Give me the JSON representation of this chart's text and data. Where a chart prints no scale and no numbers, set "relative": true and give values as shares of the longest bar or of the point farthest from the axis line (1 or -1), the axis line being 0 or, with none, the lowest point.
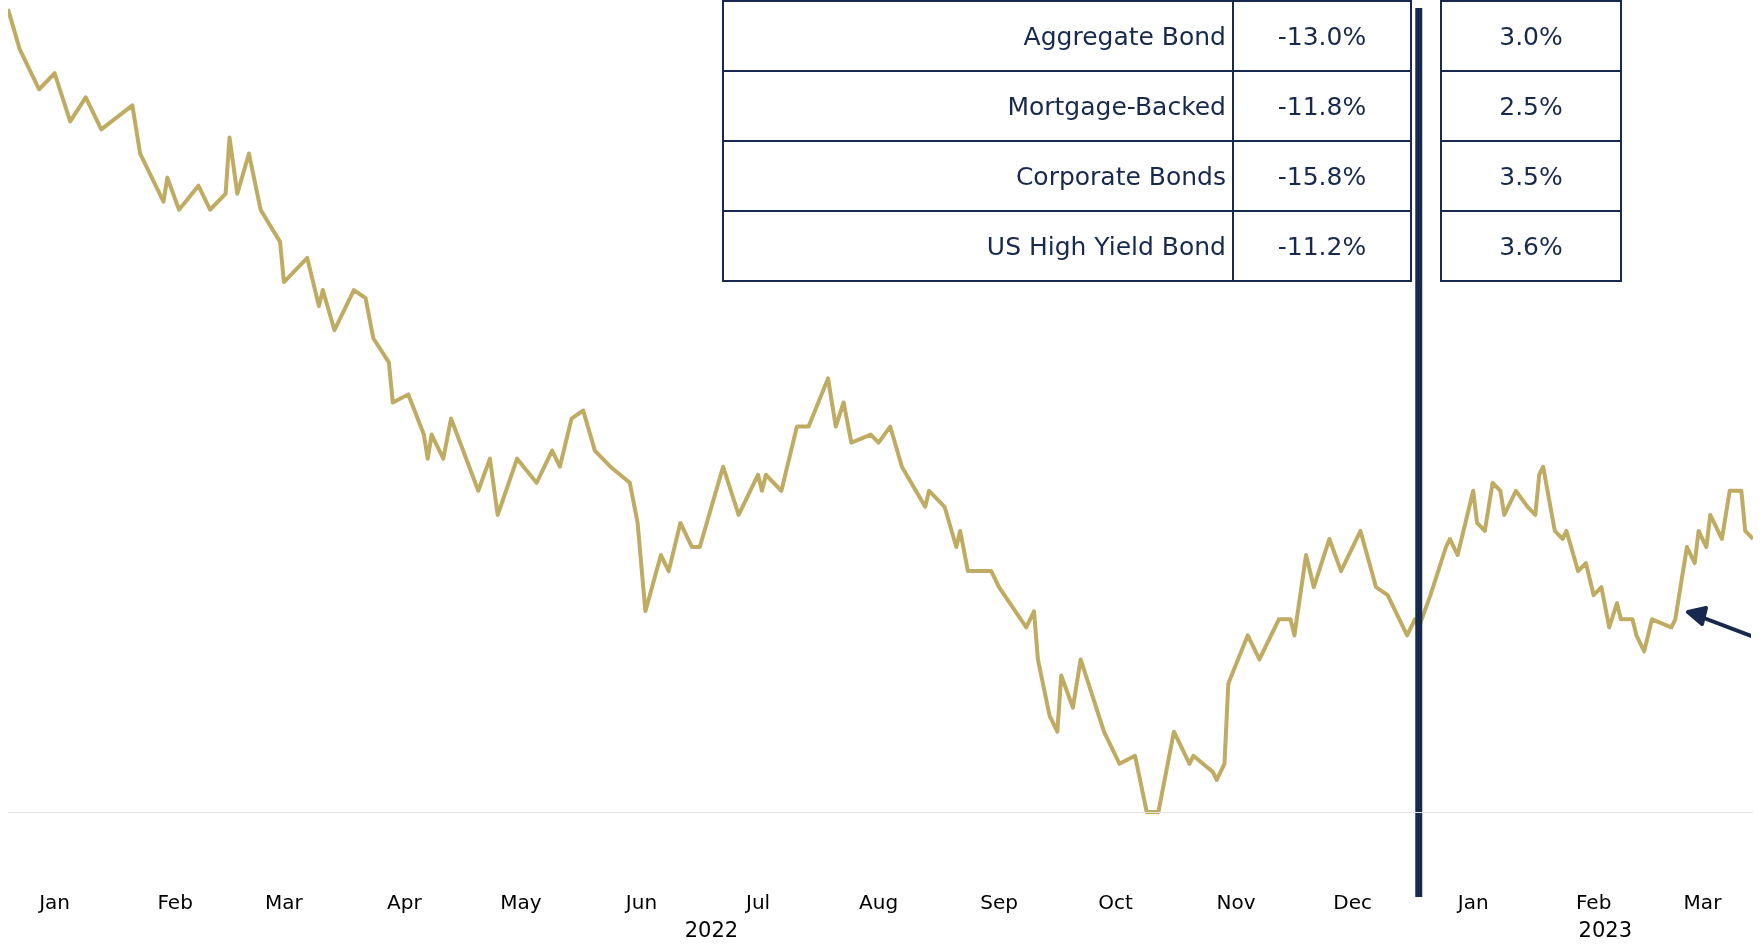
{
  "chart_data": {
    "type": "line",
    "relative": true,
    "grid": false,
    "legend": false,
    "tick_labels": "x",
    "x": [
      "2022-01-03",
      "2022-01-06",
      "2022-01-11",
      "2022-01-15",
      "2022-01-19",
      "2022-01-23",
      "2022-01-27",
      "2022-02-04",
      "2022-02-06",
      "2022-02-12",
      "2022-02-13",
      "2022-02-16",
      "2022-02-21",
      "2022-02-24",
      "2022-02-28",
      "2022-03-01",
      "2022-03-03",
      "2022-03-06",
      "2022-03-09",
      "2022-03-14",
      "2022-03-15",
      "2022-03-21",
      "2022-03-24",
      "2022-03-25",
      "2022-03-28",
      "2022-04-02",
      "2022-04-05",
      "2022-04-07",
      "2022-04-11",
      "2022-04-12",
      "2022-04-16",
      "2022-04-20",
      "2022-04-21",
      "2022-04-22",
      "2022-04-25",
      "2022-04-27",
      "2022-05-04",
      "2022-05-07",
      "2022-05-09",
      "2022-05-14",
      "2022-05-19",
      "2022-05-23",
      "2022-05-25",
      "2022-05-28",
      "2022-05-31",
      "2022-06-03",
      "2022-06-07",
      "2022-06-12",
      "2022-06-14",
      "2022-06-16",
      "2022-06-20",
      "2022-06-22",
      "2022-06-25",
      "2022-06-28",
      "2022-06-30",
      "2022-07-06",
      "2022-07-10",
      "2022-07-15",
      "2022-07-16",
      "2022-07-17",
      "2022-07-21",
      "2022-07-25",
      "2022-07-28",
      "2022-08-02",
      "2022-08-04",
      "2022-08-06",
      "2022-08-08",
      "2022-08-13",
      "2022-08-15",
      "2022-08-18",
      "2022-08-21",
      "2022-08-27",
      "2022-08-28",
      "2022-09-01",
      "2022-09-04",
      "2022-09-05",
      "2022-09-07",
      "2022-09-13",
      "2022-09-15",
      "2022-09-22",
      "2022-09-24",
      "2022-09-25",
      "2022-09-28",
      "2022-09-30",
      "2022-10-01",
      "2022-10-04",
      "2022-10-06",
      "2022-10-12",
      "2022-10-16",
      "2022-10-20",
      "2022-10-23",
      "2022-10-26",
      "2022-10-30",
      "2022-11-03",
      "2022-11-04",
      "2022-11-09",
      "2022-11-10",
      "2022-11-12",
      "2022-11-13",
      "2022-11-18",
      "2022-11-21",
      "2022-11-26",
      "2022-11-29",
      "2022-11-30",
      "2022-12-03",
      "2022-12-05",
      "2022-12-09",
      "2022-12-12",
      "2022-12-17",
      "2022-12-21",
      "2022-12-24",
      "2022-12-29",
      "2022-12-31",
      "2023-01-01",
      "2023-01-04",
      "2023-01-08",
      "2023-01-09",
      "2023-01-11",
      "2023-01-15",
      "2023-01-16",
      "2023-01-18",
      "2023-01-20",
      "2023-01-22",
      "2023-01-23",
      "2023-01-26",
      "2023-01-29",
      "2023-01-31",
      "2023-02-01",
      "2023-02-02",
      "2023-02-05",
      "2023-02-07",
      "2023-02-08",
      "2023-02-11",
      "2023-02-13",
      "2023-02-15",
      "2023-02-17",
      "2023-02-19",
      "2023-02-21",
      "2023-02-22",
      "2023-02-25",
      "2023-02-26",
      "2023-02-28",
      "2023-03-02",
      "2023-03-07",
      "2023-03-08",
      "2023-03-10",
      "2023-03-11",
      "2023-03-13",
      "2023-03-14",
      "2023-03-16",
      "2023-03-17",
      "2023-03-20",
      "2023-03-22",
      "2023-03-25",
      "2023-03-26",
      "2023-03-28"
    ],
    "series": [
      {
        "color": "#bfab62",
        "values": [
          1.0,
          0.95,
          0.9,
          0.92,
          0.86,
          0.89,
          0.85,
          0.88,
          0.82,
          0.76,
          0.79,
          0.75,
          0.78,
          0.75,
          0.77,
          0.84,
          0.77,
          0.82,
          0.75,
          0.71,
          0.66,
          0.69,
          0.63,
          0.65,
          0.6,
          0.65,
          0.64,
          0.59,
          0.56,
          0.51,
          0.52,
          0.47,
          0.44,
          0.47,
          0.44,
          0.49,
          0.4,
          0.44,
          0.37,
          0.44,
          0.41,
          0.45,
          0.43,
          0.49,
          0.5,
          0.45,
          0.43,
          0.41,
          0.36,
          0.25,
          0.32,
          0.3,
          0.36,
          0.33,
          0.33,
          0.43,
          0.37,
          0.42,
          0.4,
          0.42,
          0.4,
          0.48,
          0.48,
          0.54,
          0.48,
          0.51,
          0.46,
          0.47,
          0.46,
          0.48,
          0.43,
          0.38,
          0.4,
          0.38,
          0.33,
          0.35,
          0.3,
          0.3,
          0.28,
          0.23,
          0.25,
          0.19,
          0.12,
          0.1,
          0.17,
          0.13,
          0.19,
          0.1,
          0.06,
          0.07,
          0.0,
          0.0,
          0.1,
          0.06,
          0.07,
          0.05,
          0.04,
          0.06,
          0.16,
          0.22,
          0.19,
          0.24,
          0.24,
          0.22,
          0.32,
          0.28,
          0.34,
          0.3,
          0.35,
          0.28,
          0.27,
          0.22,
          0.24,
          0.23,
          0.27,
          0.33,
          0.34,
          0.32,
          0.4,
          0.36,
          0.35,
          0.41,
          0.4,
          0.37,
          0.4,
          0.38,
          0.37,
          0.42,
          0.43,
          0.35,
          0.34,
          0.35,
          0.3,
          0.31,
          0.27,
          0.28,
          0.23,
          0.26,
          0.24,
          0.24,
          0.22,
          0.2,
          0.24,
          0.23,
          0.24,
          0.3,
          0.33,
          0.31,
          0.35,
          0.33,
          0.37,
          0.34,
          0.4,
          0.4,
          0.35,
          0.34
        ]
      }
    ],
    "xlim": [
      "2022-01-03",
      "2023-03-28"
    ],
    "xticks": [
      {
        "value": "2022-01-15",
        "label": "Jan"
      },
      {
        "value": "2022-02-15",
        "label": "Feb"
      },
      {
        "value": "2022-03-15",
        "label": "Mar"
      },
      {
        "value": "2022-04-15",
        "label": "Apr"
      },
      {
        "value": "2022-05-15",
        "label": "May"
      },
      {
        "value": "2022-06-15",
        "label": "Jun"
      },
      {
        "value": "2022-07-15",
        "label": "Jul"
      },
      {
        "value": "2022-08-15",
        "label": "Aug"
      },
      {
        "value": "2022-09-15",
        "label": "Sep"
      },
      {
        "value": "2022-10-15",
        "label": "Oct"
      },
      {
        "value": "2022-11-15",
        "label": "Nov"
      },
      {
        "value": "2022-12-15",
        "label": "Dec"
      },
      {
        "value": "2023-01-15",
        "label": "Jan"
      },
      {
        "value": "2023-02-15",
        "label": "Feb"
      },
      {
        "value": "2023-03-15",
        "label": "Mar"
      }
    ],
    "ref_lines": [
      {
        "axis": "x",
        "value": "2023-01-01",
        "color": "#172a4d"
      }
    ],
    "x2lim": [
      "2022-01-03",
      "2023-03-28"
    ],
    "x2ticks": [
      {
        "value": "2022-07-03",
        "label": "2022"
      },
      {
        "value": "2023-02-18",
        "label": "2023"
      }
    ],
    "annotations": [
      "Aggregate Bond",
      "-13.0%",
      "3.0%",
      "Mortgage-Backed",
      "-11.8%",
      "2.5%",
      "Corporate Bonds",
      "-15.8%",
      "3.5%",
      "US High Yield Bond",
      "-11.2%",
      "3.6%"
    ]
  }
}
